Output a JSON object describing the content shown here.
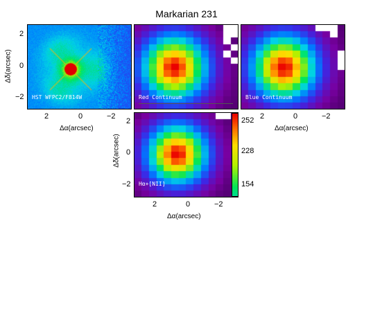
{
  "figure": {
    "title": "Markarian 231",
    "xlabel": "Δα(arcsec)",
    "ylabel": "Δδ(arcsec)"
  },
  "panels": [
    {
      "id": "hst",
      "label": "HST WFPC2/F814W"
    },
    {
      "id": "red",
      "label": "Red Continuum"
    },
    {
      "id": "blue",
      "label": "Blue Continuum"
    },
    {
      "id": "halpha",
      "label": "Hα+[NII]"
    }
  ],
  "ticks": {
    "x": [
      "2",
      "0",
      "−2"
    ],
    "y": [
      "2",
      "0",
      "−2"
    ]
  },
  "colorbar": {
    "labels": [
      "252",
      "228",
      "154"
    ]
  }
}
